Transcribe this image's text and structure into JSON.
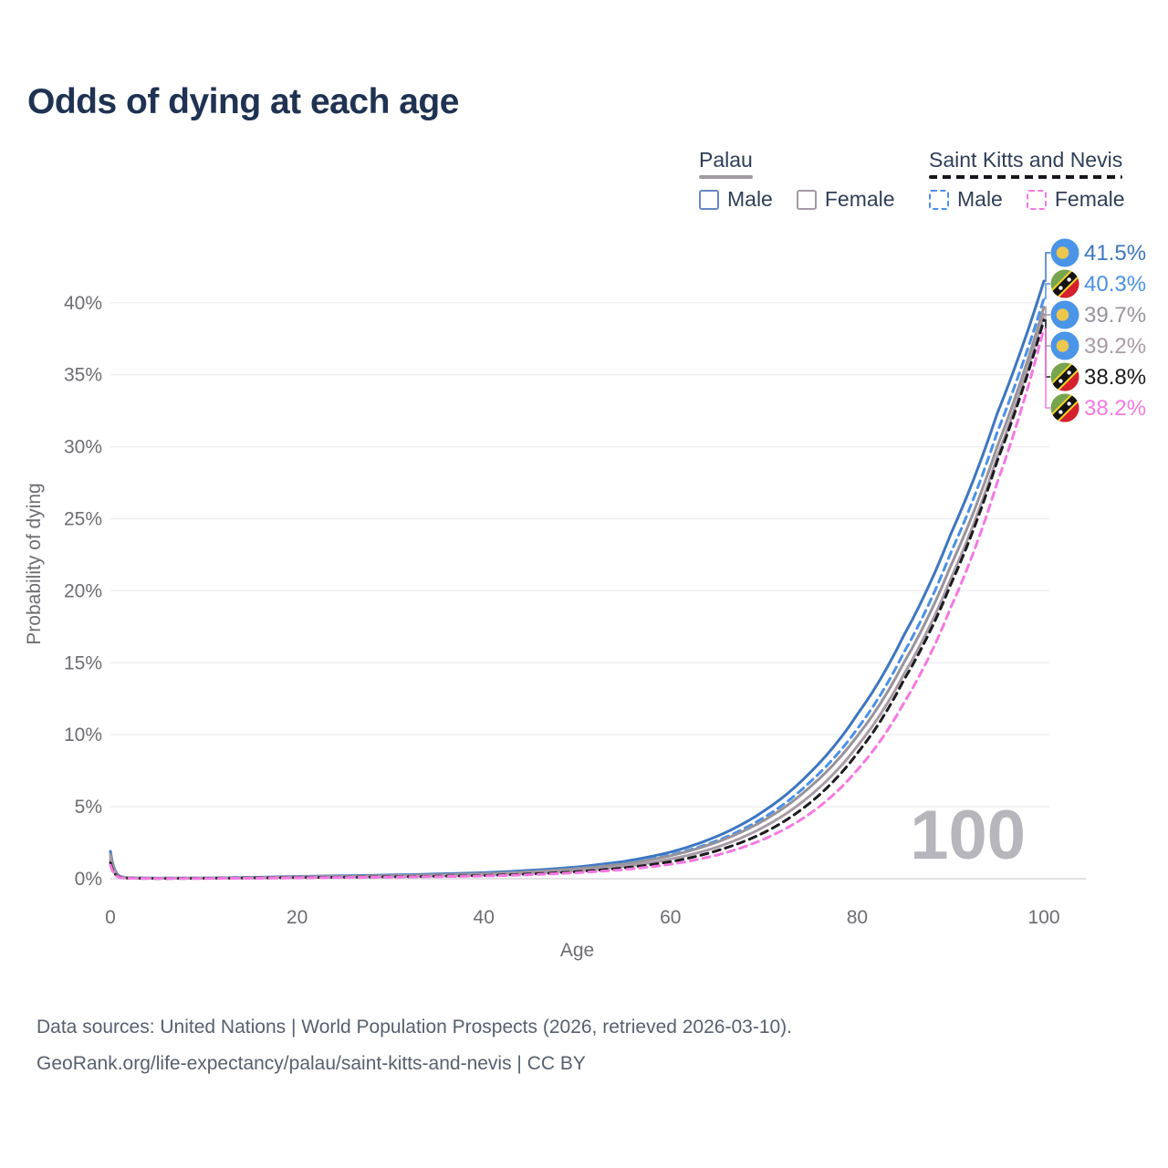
{
  "title": "Odds of dying at each age",
  "legend": {
    "groups": [
      {
        "country": "Palau",
        "all_line_color": "#a29aa3",
        "dashed": false,
        "items": [
          {
            "label": "Male",
            "color": "#6787c4"
          },
          {
            "label": "Female",
            "color": "#a49aa4"
          }
        ]
      },
      {
        "country": "Saint Kitts and Nevis",
        "all_line_color": "#16161a",
        "dashed": true,
        "items": [
          {
            "label": "Male",
            "color": "#4a90e8"
          },
          {
            "label": "Female",
            "color": "#f678e2"
          }
        ]
      }
    ]
  },
  "chart_data": {
    "type": "line",
    "title": "Odds of dying at each age",
    "xlabel": "Age",
    "ylabel": "Probability of dying",
    "xlim": [
      0,
      100
    ],
    "ylim": [
      0,
      43
    ],
    "x_ticks": [
      0,
      20,
      40,
      60,
      80,
      100
    ],
    "y_ticks": [
      0,
      5,
      10,
      15,
      20,
      25,
      30,
      35,
      40
    ],
    "y_tick_suffix": "%",
    "grid": true,
    "legend_position": "top-right",
    "hover_age_label": "100",
    "ages": [
      0,
      1,
      2,
      5,
      10,
      20,
      30,
      40,
      45,
      50,
      55,
      60,
      65,
      70,
      75,
      80,
      85,
      90,
      95,
      100
    ],
    "series": [
      {
        "name": "Palau Male",
        "slug": "palau-male",
        "flag": "palau",
        "color": "#3d76c0",
        "dashed": false,
        "end_label": "41.5%",
        "values": [
          1.9,
          0.17,
          0.06,
          0.04,
          0.05,
          0.16,
          0.26,
          0.42,
          0.58,
          0.82,
          1.2,
          1.85,
          2.95,
          4.7,
          7.4,
          11.4,
          16.9,
          23.9,
          32.3,
          41.5
        ]
      },
      {
        "name": "Saint Kitts and Nevis Male",
        "slug": "skn-male",
        "flag": "skn",
        "color": "#4a90e8",
        "dashed": true,
        "end_label": "40.3%",
        "values": [
          1.3,
          0.12,
          0.05,
          0.03,
          0.04,
          0.13,
          0.21,
          0.36,
          0.5,
          0.72,
          1.06,
          1.65,
          2.65,
          4.25,
          6.75,
          10.4,
          15.7,
          22.6,
          31.0,
          40.3
        ]
      },
      {
        "name": "Palau All sexes",
        "slug": "palau-all",
        "flag": "palau",
        "color": "#98939b",
        "dashed": false,
        "end_label": "39.7%",
        "values": [
          1.7,
          0.14,
          0.05,
          0.03,
          0.04,
          0.13,
          0.21,
          0.34,
          0.48,
          0.7,
          1.02,
          1.6,
          2.55,
          4.05,
          6.4,
          9.9,
          15.0,
          21.7,
          30.0,
          39.7
        ]
      },
      {
        "name": "Palau Female",
        "slug": "palau-female",
        "flag": "palau",
        "color": "#a89ba6",
        "dashed": false,
        "end_label": "39.2%",
        "values": [
          1.5,
          0.12,
          0.04,
          0.03,
          0.03,
          0.09,
          0.15,
          0.26,
          0.39,
          0.57,
          0.86,
          1.36,
          2.2,
          3.6,
          5.8,
          9.2,
          14.2,
          20.8,
          29.3,
          39.2
        ]
      },
      {
        "name": "Saint Kitts and Nevis All sexes",
        "slug": "skn-all",
        "flag": "skn",
        "color": "#1c1c1f",
        "dashed": true,
        "end_label": "38.8%",
        "values": [
          1.1,
          0.1,
          0.04,
          0.02,
          0.03,
          0.08,
          0.13,
          0.22,
          0.33,
          0.49,
          0.75,
          1.18,
          1.95,
          3.2,
          5.3,
          8.7,
          13.8,
          20.4,
          29.0,
          38.8
        ]
      },
      {
        "name": "Saint Kitts and Nevis Female",
        "slug": "skn-female",
        "flag": "skn",
        "color": "#f678e2",
        "dashed": true,
        "end_label": "38.2%",
        "values": [
          0.95,
          0.08,
          0.03,
          0.02,
          0.02,
          0.07,
          0.11,
          0.19,
          0.28,
          0.42,
          0.64,
          1.0,
          1.65,
          2.75,
          4.55,
          7.55,
          12.2,
          18.8,
          27.5,
          38.2
        ]
      }
    ],
    "flag_colors": {
      "palau": {
        "field": "#4a95e8",
        "moon": "#edc64e"
      },
      "skn": {
        "green": "#76a44f",
        "red": "#d5202e",
        "band": "#141414",
        "edge": "#f5d327",
        "star": "#ffffff"
      }
    }
  },
  "footer": {
    "line1": "Data sources: United Nations | World Population Prospects (2026, retrieved 2026-03-10).",
    "line2": "GeoRank.org/life-expectancy/palau/saint-kitts-and-nevis | CC BY"
  }
}
